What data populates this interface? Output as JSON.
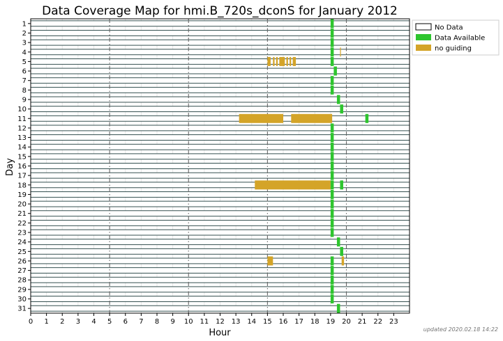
{
  "chart_data": {
    "type": "timeline",
    "title": "Data Coverage Map for hmi.B_720s_dconS for January 2012",
    "xlabel": "Hour",
    "ylabel": "Day",
    "xlim": [
      0,
      24
    ],
    "x_ticks": [
      "0",
      "1",
      "2",
      "3",
      "4",
      "5",
      "6",
      "7",
      "8",
      "9",
      "10",
      "11",
      "12",
      "13",
      "14",
      "15",
      "16",
      "17",
      "18",
      "19",
      "20",
      "21",
      "22",
      "23"
    ],
    "major_vlines": [
      5,
      10,
      15,
      20
    ],
    "days": [
      "1",
      "2",
      "3",
      "4",
      "5",
      "6",
      "7",
      "8",
      "9",
      "10",
      "11",
      "12",
      "13",
      "14",
      "15",
      "16",
      "17",
      "18",
      "19",
      "20",
      "21",
      "22",
      "23",
      "24",
      "25",
      "26",
      "27",
      "28",
      "29",
      "30",
      "31"
    ],
    "legend": {
      "position": "outside-right",
      "entries": [
        {
          "key": "no_data",
          "label": "No Data"
        },
        {
          "key": "available",
          "label": "Data Available"
        },
        {
          "key": "no_guiding",
          "label": "no guiding"
        }
      ]
    },
    "colors": {
      "no_data": "#ffffff",
      "available": "#2ec52e",
      "no_guiding": "#d4a428",
      "row_line": "#1f3d3d"
    },
    "segments": [
      {
        "day": 1,
        "start": 19.0,
        "end": 19.2,
        "status": "available"
      },
      {
        "day": 2,
        "start": 19.0,
        "end": 19.2,
        "status": "available"
      },
      {
        "day": 3,
        "start": 19.0,
        "end": 19.2,
        "status": "available"
      },
      {
        "day": 4,
        "start": 19.0,
        "end": 19.2,
        "status": "available"
      },
      {
        "day": 4,
        "start": 19.6,
        "end": 19.65,
        "status": "no_guiding"
      },
      {
        "day": 5,
        "start": 15.0,
        "end": 15.2,
        "status": "no_guiding"
      },
      {
        "day": 5,
        "start": 15.35,
        "end": 15.45,
        "status": "no_guiding"
      },
      {
        "day": 5,
        "start": 15.55,
        "end": 15.65,
        "status": "no_guiding"
      },
      {
        "day": 5,
        "start": 15.75,
        "end": 16.1,
        "status": "no_guiding"
      },
      {
        "day": 5,
        "start": 16.2,
        "end": 16.3,
        "status": "no_guiding"
      },
      {
        "day": 5,
        "start": 16.4,
        "end": 16.5,
        "status": "no_guiding"
      },
      {
        "day": 5,
        "start": 16.6,
        "end": 16.8,
        "status": "no_guiding"
      },
      {
        "day": 5,
        "start": 19.0,
        "end": 19.2,
        "status": "available"
      },
      {
        "day": 6,
        "start": 19.2,
        "end": 19.4,
        "status": "available"
      },
      {
        "day": 7,
        "start": 19.0,
        "end": 19.2,
        "status": "available"
      },
      {
        "day": 8,
        "start": 19.0,
        "end": 19.2,
        "status": "available"
      },
      {
        "day": 9,
        "start": 19.4,
        "end": 19.6,
        "status": "available"
      },
      {
        "day": 10,
        "start": 19.6,
        "end": 19.8,
        "status": "available"
      },
      {
        "day": 11,
        "start": 13.2,
        "end": 16.0,
        "status": "no_guiding"
      },
      {
        "day": 11,
        "start": 16.5,
        "end": 19.1,
        "status": "no_guiding"
      },
      {
        "day": 11,
        "start": 21.2,
        "end": 21.4,
        "status": "available"
      },
      {
        "day": 12,
        "start": 19.0,
        "end": 19.2,
        "status": "available"
      },
      {
        "day": 13,
        "start": 19.0,
        "end": 19.2,
        "status": "available"
      },
      {
        "day": 14,
        "start": 19.0,
        "end": 19.2,
        "status": "available"
      },
      {
        "day": 15,
        "start": 19.0,
        "end": 19.2,
        "status": "available"
      },
      {
        "day": 16,
        "start": 19.0,
        "end": 19.2,
        "status": "available"
      },
      {
        "day": 17,
        "start": 19.0,
        "end": 19.2,
        "status": "available"
      },
      {
        "day": 18,
        "start": 14.2,
        "end": 19.0,
        "status": "no_guiding"
      },
      {
        "day": 18,
        "start": 19.0,
        "end": 19.2,
        "status": "available"
      },
      {
        "day": 18,
        "start": 19.6,
        "end": 19.8,
        "status": "available"
      },
      {
        "day": 19,
        "start": 19.0,
        "end": 19.2,
        "status": "available"
      },
      {
        "day": 20,
        "start": 19.0,
        "end": 19.2,
        "status": "available"
      },
      {
        "day": 21,
        "start": 19.0,
        "end": 19.2,
        "status": "available"
      },
      {
        "day": 22,
        "start": 19.0,
        "end": 19.2,
        "status": "available"
      },
      {
        "day": 23,
        "start": 19.0,
        "end": 19.2,
        "status": "available"
      },
      {
        "day": 24,
        "start": 19.4,
        "end": 19.6,
        "status": "available"
      },
      {
        "day": 25,
        "start": 19.6,
        "end": 19.8,
        "status": "available"
      },
      {
        "day": 26,
        "start": 15.0,
        "end": 15.35,
        "status": "no_guiding"
      },
      {
        "day": 26,
        "start": 19.0,
        "end": 19.2,
        "status": "available"
      },
      {
        "day": 26,
        "start": 19.7,
        "end": 19.85,
        "status": "no_guiding"
      },
      {
        "day": 27,
        "start": 19.0,
        "end": 19.2,
        "status": "available"
      },
      {
        "day": 28,
        "start": 19.0,
        "end": 19.2,
        "status": "available"
      },
      {
        "day": 29,
        "start": 19.0,
        "end": 19.2,
        "status": "available"
      },
      {
        "day": 30,
        "start": 19.0,
        "end": 19.2,
        "status": "available"
      },
      {
        "day": 31,
        "start": 19.4,
        "end": 19.6,
        "status": "available"
      }
    ]
  },
  "footer": {
    "updated_text": "updated 2020.02.18 14:22"
  }
}
